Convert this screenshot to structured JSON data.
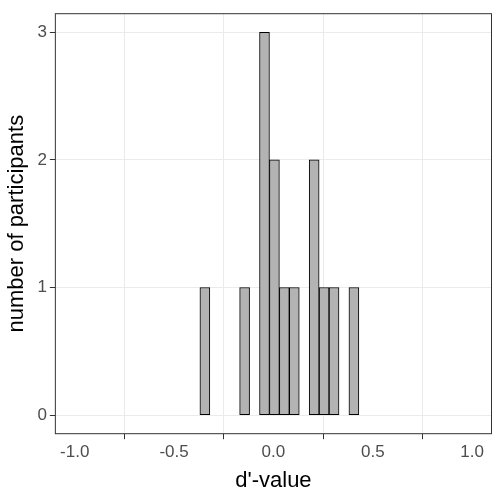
{
  "chart_data": {
    "type": "histogram",
    "x_label": "d'-value",
    "y_label": "number of participants",
    "bins": [
      -0.37,
      -0.32,
      -0.27,
      -0.22,
      -0.17,
      -0.12,
      -0.07,
      -0.02,
      0.03,
      0.08,
      0.13,
      0.18,
      0.23,
      0.28,
      0.33,
      0.38,
      0.43
    ],
    "counts": [
      1,
      0,
      0,
      0,
      1,
      0,
      3,
      2,
      1,
      1,
      0,
      2,
      1,
      1,
      0,
      1
    ],
    "color": "#b3b3b3",
    "xlim": [
      -1.1,
      1.1
    ],
    "xticks": [
      {
        "value": -1,
        "label": "-1.0"
      },
      {
        "value": -0.5,
        "label": "-0.5"
      },
      {
        "value": 0,
        "label": "0.0"
      },
      {
        "value": 0.5,
        "label": "0.5"
      },
      {
        "value": 1,
        "label": "1.0"
      }
    ],
    "ylim": [
      -0.15,
      3.15
    ],
    "yticks": [
      0,
      1,
      2,
      3
    ],
    "grid": true
  }
}
